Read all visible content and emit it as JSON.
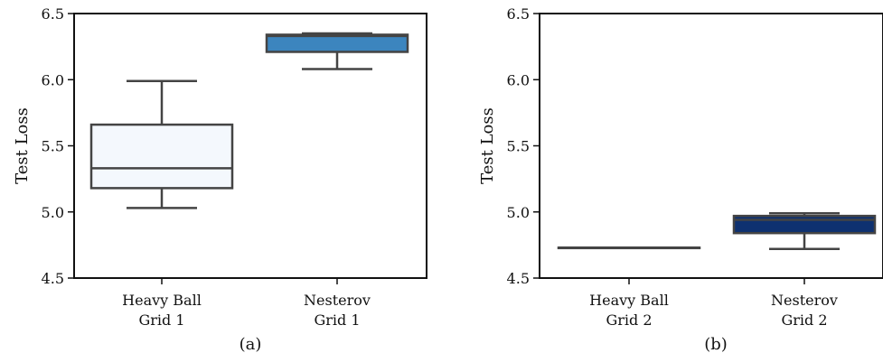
{
  "chart_data": [
    {
      "type": "box",
      "caption": "(a)",
      "ylabel": "Test Loss",
      "ylim": [
        4.5,
        6.5
      ],
      "yticks": [
        "4.5",
        "5.0",
        "5.5",
        "6.0",
        "6.5"
      ],
      "categories": [
        {
          "line1": "Heavy Ball",
          "line2": "Grid 1"
        },
        {
          "line1": "Nesterov",
          "line2": "Grid 1"
        }
      ],
      "boxes": [
        {
          "whisker_low": 5.03,
          "q1": 5.18,
          "median": 5.33,
          "q3": 5.66,
          "whisker_high": 5.99,
          "color": "#f4f8fd"
        },
        {
          "whisker_low": 6.08,
          "q1": 6.21,
          "median": 6.33,
          "q3": 6.34,
          "whisker_high": 6.35,
          "color": "#3c85be"
        }
      ]
    },
    {
      "type": "box",
      "caption": "(b)",
      "ylabel": "Test Loss",
      "ylim": [
        4.5,
        6.5
      ],
      "yticks": [
        "4.5",
        "5.0",
        "5.5",
        "6.0",
        "6.5"
      ],
      "categories": [
        {
          "line1": "Heavy Ball",
          "line2": "Grid 2"
        },
        {
          "line1": "Nesterov",
          "line2": "Grid 2"
        }
      ],
      "boxes": [
        {
          "whisker_low": 4.73,
          "q1": 4.73,
          "median": 4.73,
          "q3": 4.73,
          "whisker_high": 4.73,
          "color": "#ffffff"
        },
        {
          "whisker_low": 4.72,
          "q1": 4.84,
          "median": 4.94,
          "q3": 4.97,
          "whisker_high": 4.99,
          "color": "#0e3170"
        }
      ]
    }
  ]
}
